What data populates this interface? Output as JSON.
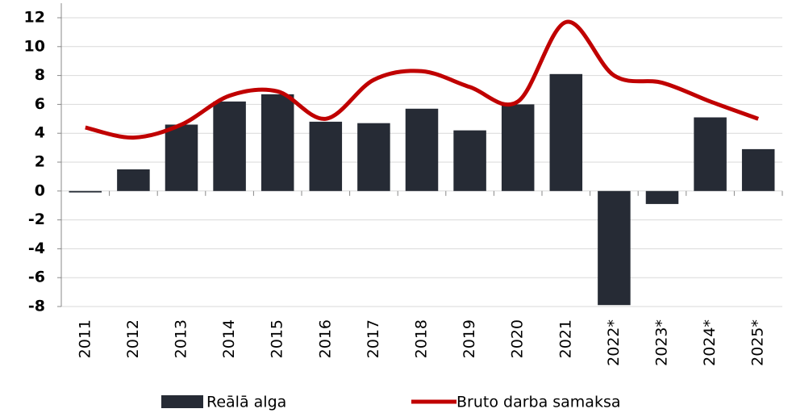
{
  "chart_data": {
    "type": "bar",
    "categories": [
      "2011",
      "2012",
      "2013",
      "2014",
      "2015",
      "2016",
      "2017",
      "2018",
      "2019",
      "2020",
      "2021",
      "2022*",
      "2023*",
      "2024*",
      "2025*"
    ],
    "series": [
      {
        "name": "Reālā alga",
        "type": "bar",
        "color": "#262b35",
        "values": [
          -0.1,
          1.5,
          4.6,
          6.2,
          6.7,
          4.8,
          4.7,
          5.7,
          4.2,
          6.0,
          8.1,
          -7.9,
          -0.9,
          5.1,
          2.9
        ]
      },
      {
        "name": "Bruto darba samaksa",
        "type": "line",
        "color": "#c00000",
        "values": [
          4.4,
          3.7,
          4.6,
          6.6,
          6.9,
          5.0,
          7.7,
          8.3,
          7.2,
          6.2,
          11.7,
          8.0,
          7.5,
          6.2,
          5.0
        ]
      }
    ],
    "ylim": [
      -8,
      12
    ],
    "yticks": [
      -8,
      -6,
      -4,
      -2,
      0,
      2,
      4,
      6,
      8,
      10,
      12
    ],
    "grid": true,
    "legend": "bottom"
  }
}
